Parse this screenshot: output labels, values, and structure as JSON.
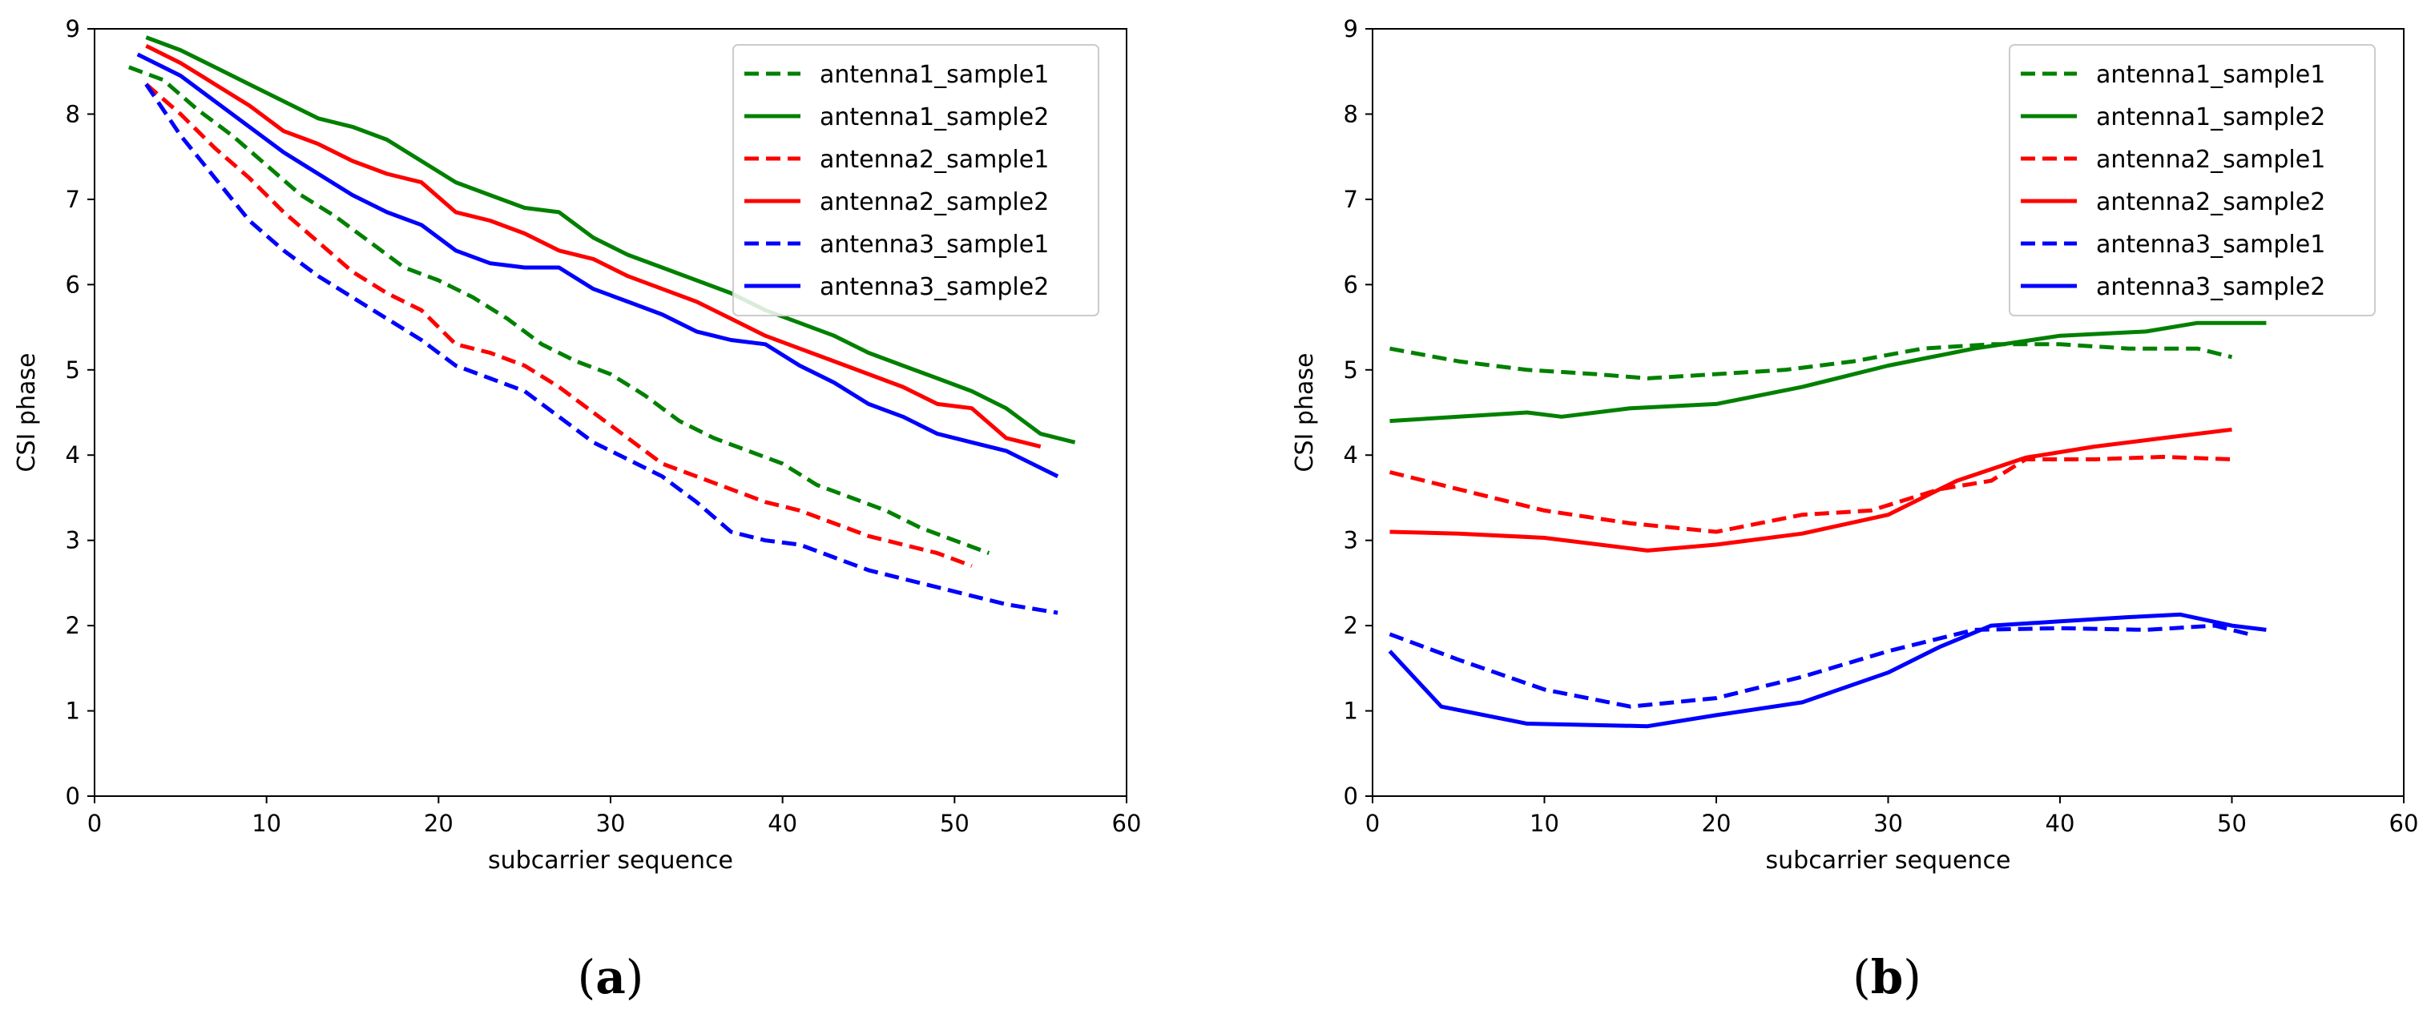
{
  "chart_data": [
    {
      "type": "line",
      "panel_label": "(a)",
      "panel_letter": "a",
      "title": "",
      "xlabel": "subcarrier sequence",
      "ylabel": "CSI phase",
      "xlim": [
        0,
        60
      ],
      "ylim": [
        0,
        9
      ],
      "xticks": [
        "0",
        "10",
        "20",
        "30",
        "40",
        "50",
        "60"
      ],
      "yticks": [
        "0",
        "1",
        "2",
        "3",
        "4",
        "5",
        "6",
        "7",
        "8",
        "9"
      ],
      "grid": false,
      "legend_position": "upper-right",
      "series": [
        {
          "name": "antenna1_sample1",
          "color": "#008000",
          "dash": "dashed",
          "x": [
            2,
            4,
            6,
            8,
            10,
            12,
            14,
            16,
            18,
            20,
            22,
            24,
            26,
            28,
            30,
            32,
            34,
            36,
            38,
            40,
            42,
            44,
            46,
            48,
            50,
            52
          ],
          "y": [
            8.55,
            8.4,
            8.05,
            7.75,
            7.4,
            7.05,
            6.8,
            6.5,
            6.2,
            6.05,
            5.85,
            5.6,
            5.3,
            5.1,
            4.95,
            4.7,
            4.4,
            4.2,
            4.05,
            3.9,
            3.65,
            3.5,
            3.35,
            3.15,
            3.0,
            2.85
          ]
        },
        {
          "name": "antenna1_sample2",
          "color": "#008000",
          "dash": "solid",
          "x": [
            3,
            5,
            7,
            9,
            11,
            13,
            15,
            17,
            19,
            21,
            23,
            25,
            27,
            29,
            31,
            33,
            35,
            37,
            39,
            41,
            43,
            45,
            47,
            49,
            51,
            53,
            55,
            57
          ],
          "y": [
            8.9,
            8.75,
            8.55,
            8.35,
            8.15,
            7.95,
            7.85,
            7.7,
            7.45,
            7.2,
            7.05,
            6.9,
            6.85,
            6.55,
            6.35,
            6.2,
            6.05,
            5.9,
            5.7,
            5.55,
            5.4,
            5.2,
            5.05,
            4.9,
            4.75,
            4.55,
            4.25,
            4.15
          ]
        },
        {
          "name": "antenna2_sample1",
          "color": "#ff0000",
          "dash": "dashed",
          "x": [
            3,
            5,
            7,
            9,
            11,
            13,
            15,
            17,
            19,
            21,
            23,
            25,
            27,
            29,
            31,
            33,
            35,
            37,
            39,
            41,
            43,
            45,
            47,
            49,
            51
          ],
          "y": [
            8.35,
            8.0,
            7.6,
            7.25,
            6.85,
            6.5,
            6.15,
            5.9,
            5.7,
            5.3,
            5.2,
            5.05,
            4.8,
            4.5,
            4.2,
            3.9,
            3.75,
            3.6,
            3.45,
            3.35,
            3.2,
            3.05,
            2.95,
            2.85,
            2.7
          ]
        },
        {
          "name": "antenna2_sample2",
          "color": "#ff0000",
          "dash": "solid",
          "x": [
            3,
            5,
            7,
            9,
            11,
            13,
            15,
            17,
            19,
            21,
            23,
            25,
            27,
            29,
            31,
            33,
            35,
            37,
            39,
            41,
            43,
            45,
            47,
            49,
            51,
            53,
            55
          ],
          "y": [
            8.8,
            8.6,
            8.35,
            8.1,
            7.8,
            7.65,
            7.45,
            7.3,
            7.2,
            6.85,
            6.75,
            6.6,
            6.4,
            6.3,
            6.1,
            5.95,
            5.8,
            5.6,
            5.4,
            5.25,
            5.1,
            4.95,
            4.8,
            4.6,
            4.55,
            4.2,
            4.1
          ]
        },
        {
          "name": "antenna3_sample1",
          "color": "#0000ff",
          "dash": "dashed",
          "x": [
            3,
            5,
            7,
            9,
            11,
            13,
            15,
            17,
            19,
            21,
            23,
            25,
            27,
            29,
            31,
            33,
            35,
            37,
            39,
            41,
            43,
            45,
            47,
            49,
            51,
            53,
            56
          ],
          "y": [
            8.35,
            7.75,
            7.25,
            6.75,
            6.4,
            6.1,
            5.85,
            5.6,
            5.35,
            5.05,
            4.9,
            4.75,
            4.45,
            4.15,
            3.95,
            3.75,
            3.45,
            3.1,
            3.0,
            2.95,
            2.8,
            2.65,
            2.55,
            2.45,
            2.35,
            2.25,
            2.15
          ]
        },
        {
          "name": "antenna3_sample2",
          "color": "#0000ff",
          "dash": "solid",
          "x": [
            2.5,
            5,
            7,
            9,
            11,
            13,
            15,
            17,
            19,
            21,
            23,
            25,
            27,
            29,
            31,
            33,
            35,
            37,
            39,
            41,
            43,
            45,
            47,
            49,
            51,
            53,
            56
          ],
          "y": [
            8.7,
            8.45,
            8.15,
            7.85,
            7.55,
            7.3,
            7.05,
            6.85,
            6.7,
            6.4,
            6.25,
            6.2,
            6.2,
            5.95,
            5.8,
            5.65,
            5.45,
            5.35,
            5.3,
            5.05,
            4.85,
            4.6,
            4.45,
            4.25,
            4.15,
            4.05,
            3.75
          ]
        }
      ]
    },
    {
      "type": "line",
      "panel_label": "(b)",
      "panel_letter": "b",
      "title": "",
      "xlabel": "subcarrier sequence",
      "ylabel": "CSI phase",
      "xlim": [
        0,
        60
      ],
      "ylim": [
        0,
        9
      ],
      "xticks": [
        "0",
        "10",
        "20",
        "30",
        "40",
        "50",
        "60"
      ],
      "yticks": [
        "0",
        "1",
        "2",
        "3",
        "4",
        "5",
        "6",
        "7",
        "8",
        "9"
      ],
      "grid": false,
      "legend_position": "upper-right",
      "series": [
        {
          "name": "antenna1_sample1",
          "color": "#008000",
          "dash": "dashed",
          "x": [
            1,
            5,
            9,
            13,
            16,
            20,
            24,
            28,
            32,
            36,
            40,
            44,
            48,
            50
          ],
          "y": [
            5.25,
            5.1,
            5.0,
            4.95,
            4.9,
            4.95,
            5.0,
            5.1,
            5.25,
            5.3,
            5.3,
            5.25,
            5.25,
            5.15
          ]
        },
        {
          "name": "antenna1_sample2",
          "color": "#008000",
          "dash": "solid",
          "x": [
            1,
            5,
            9,
            11,
            15,
            20,
            25,
            30,
            35,
            40,
            45,
            48,
            50,
            52
          ],
          "y": [
            4.4,
            4.45,
            4.5,
            4.45,
            4.55,
            4.6,
            4.8,
            5.05,
            5.25,
            5.4,
            5.45,
            5.55,
            5.55,
            5.55
          ]
        },
        {
          "name": "antenna2_sample1",
          "color": "#ff0000",
          "dash": "dashed",
          "x": [
            1,
            5,
            10,
            15,
            20,
            25,
            29,
            33,
            36,
            38,
            42,
            46,
            50
          ],
          "y": [
            3.8,
            3.6,
            3.35,
            3.2,
            3.1,
            3.3,
            3.35,
            3.6,
            3.7,
            3.95,
            3.95,
            3.98,
            3.95
          ]
        },
        {
          "name": "antenna2_sample2",
          "color": "#ff0000",
          "dash": "solid",
          "x": [
            1,
            5,
            10,
            16,
            20,
            25,
            30,
            34,
            38,
            42,
            46,
            50
          ],
          "y": [
            3.1,
            3.08,
            3.03,
            2.88,
            2.95,
            3.08,
            3.3,
            3.7,
            3.97,
            4.1,
            4.2,
            4.3
          ]
        },
        {
          "name": "antenna3_sample1",
          "color": "#0000ff",
          "dash": "dashed",
          "x": [
            1,
            5,
            10,
            15,
            20,
            25,
            30,
            35,
            40,
            45,
            49,
            51
          ],
          "y": [
            1.9,
            1.6,
            1.25,
            1.05,
            1.15,
            1.4,
            1.7,
            1.95,
            1.97,
            1.95,
            2.0,
            1.9
          ]
        },
        {
          "name": "antenna3_sample2",
          "color": "#0000ff",
          "dash": "solid",
          "x": [
            1,
            4,
            9,
            16,
            20,
            25,
            30,
            33,
            36,
            40,
            44,
            47,
            50,
            52
          ],
          "y": [
            1.7,
            1.05,
            0.85,
            0.82,
            0.95,
            1.1,
            1.45,
            1.75,
            2.0,
            2.05,
            2.1,
            2.13,
            2.0,
            1.95
          ]
        }
      ]
    }
  ]
}
